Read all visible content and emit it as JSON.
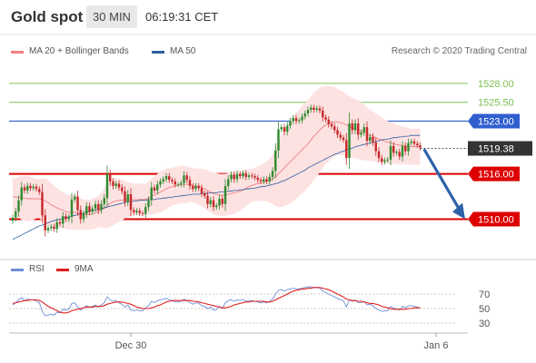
{
  "header": {
    "title": "Gold spot",
    "timeframe": "30 MIN",
    "time": "06:19:31 CET"
  },
  "legend": {
    "ma20_label": "MA 20 + Bollinger Bands",
    "ma20_color": "#f08080",
    "ma50_label": "MA 50",
    "ma50_color": "#2e5d9f",
    "credit": "Research © 2020 Trading Central"
  },
  "indicator_legend": {
    "rsi_label": "RSI",
    "rsi_color": "#6f8fd8",
    "ma9_label": "9MA",
    "ma9_color": "#e02020"
  },
  "colors": {
    "bull": "#2e8b2e",
    "bear": "#c62828",
    "support": "#dd0000",
    "resistance": "#2f5fcf",
    "target": "#7cc050",
    "arrow": "#2e62a8",
    "band": "#fde2e2"
  },
  "chart_data": [
    {
      "type": "candlestick",
      "title": "Gold spot",
      "ylim": [
        1505,
        1531
      ],
      "x_ticks": [
        "Dec 30",
        "Jan 6"
      ],
      "levels": [
        {
          "value": 1528.0,
          "label": "1528.00",
          "kind": "target"
        },
        {
          "value": 1525.5,
          "label": "1525.50",
          "kind": "target"
        },
        {
          "value": 1523.0,
          "label": "1523.00",
          "kind": "resistance"
        },
        {
          "value": 1516.0,
          "label": "1516.00",
          "kind": "support"
        },
        {
          "value": 1510.0,
          "label": "1510.00",
          "kind": "support"
        }
      ],
      "last_price": {
        "value": 1519.38,
        "label": "1519.38"
      },
      "close": [
        1510.2,
        1511.0,
        1512.5,
        1514.2,
        1513.8,
        1514.4,
        1514.1,
        1514.3,
        1514.0,
        1513.6,
        1510.5,
        1508.5,
        1508.8,
        1509.0,
        1508.7,
        1509.6,
        1509.4,
        1510.4,
        1510.0,
        1510.3,
        1512.6,
        1513.0,
        1511.2,
        1510.0,
        1510.7,
        1511.7,
        1511.0,
        1511.4,
        1512.0,
        1511.2,
        1512.0,
        1512.8,
        1516.0,
        1515.0,
        1514.4,
        1514.7,
        1514.2,
        1513.7,
        1512.3,
        1513.3,
        1511.2,
        1510.9,
        1511.1,
        1510.8,
        1510.7,
        1511.6,
        1512.5,
        1514.2,
        1513.8,
        1514.6,
        1515.0,
        1515.3,
        1515.7,
        1515.2,
        1515.0,
        1514.6,
        1514.6,
        1514.8,
        1515.8,
        1515.2,
        1514.4,
        1514.0,
        1514.4,
        1514.1,
        1513.4,
        1513.1,
        1512.0,
        1512.5,
        1511.6,
        1511.8,
        1512.7,
        1512.0,
        1514.4,
        1515.3,
        1515.9,
        1515.3,
        1516.0,
        1515.7,
        1516.1,
        1515.6,
        1515.8,
        1515.7,
        1515.5,
        1515.2,
        1515.0,
        1515.3,
        1515.0,
        1515.6,
        1516.4,
        1519.1,
        1521.9,
        1522.2,
        1521.6,
        1522.4,
        1523.0,
        1523.4,
        1523.0,
        1523.1,
        1523.6,
        1524.0,
        1524.5,
        1524.8,
        1524.5,
        1524.7,
        1524.4,
        1523.5,
        1523.2,
        1522.6,
        1522.3,
        1521.8,
        1521.2,
        1520.8,
        1520.5,
        1518.1,
        1522.7,
        1521.8,
        1522.7,
        1521.2,
        1521.5,
        1522.2,
        1520.4,
        1520.9,
        1520.2,
        1519.0,
        1518.1,
        1517.6,
        1517.8,
        1517.9,
        1519.7,
        1518.8,
        1518.9,
        1518.3,
        1519.7,
        1519.0,
        1520.1,
        1520.3,
        1520.0,
        1519.8,
        1519.5
      ],
      "ma20": [
        1513.0,
        1512.9,
        1512.9,
        1512.8,
        1512.8,
        1512.7,
        1512.7,
        1512.7,
        1512.7,
        1512.7,
        1512.6,
        1512.4,
        1512.2,
        1511.9,
        1511.7,
        1511.5,
        1511.3,
        1511.2,
        1511.0,
        1510.9,
        1510.9,
        1510.9,
        1510.8,
        1510.7,
        1510.6,
        1510.6,
        1510.6,
        1510.7,
        1510.8,
        1511.0,
        1511.2,
        1511.4,
        1511.8,
        1512.1,
        1512.3,
        1512.4,
        1512.5,
        1512.5,
        1512.6,
        1512.6,
        1512.6,
        1512.6,
        1512.6,
        1512.6,
        1512.6,
        1512.6,
        1512.8,
        1513.0,
        1513.2,
        1513.4,
        1513.6,
        1513.8,
        1514.0,
        1514.2,
        1514.3,
        1514.4,
        1514.5,
        1514.6,
        1514.6,
        1514.6,
        1514.6,
        1514.5,
        1514.4,
        1514.3,
        1514.2,
        1514.0,
        1513.8,
        1513.6,
        1513.4,
        1513.3,
        1513.2,
        1513.2,
        1513.2,
        1513.3,
        1513.4,
        1513.5,
        1513.6,
        1513.7,
        1513.9,
        1514.1,
        1514.3,
        1514.5,
        1514.6,
        1514.7,
        1514.8,
        1514.9,
        1515.0,
        1515.1,
        1515.3,
        1515.6,
        1516.0,
        1516.4,
        1516.8,
        1517.2,
        1517.6,
        1518.0,
        1518.4,
        1518.8,
        1519.2,
        1519.6,
        1520.0,
        1520.5,
        1521.0,
        1521.4,
        1521.8,
        1522.2,
        1522.5,
        1522.7,
        1522.8,
        1522.9,
        1522.9,
        1522.8,
        1522.7,
        1522.5,
        1522.3,
        1522.1,
        1522.0,
        1521.9,
        1521.7,
        1521.5,
        1521.3,
        1521.1,
        1521.0,
        1520.8,
        1520.6,
        1520.5,
        1520.3,
        1520.2,
        1520.1,
        1520.0,
        1519.9,
        1519.8,
        1519.8,
        1519.7,
        1519.7,
        1519.6,
        1519.6,
        1519.6,
        1519.6
      ],
      "ma50": [
        1507.3,
        1507.5,
        1507.7,
        1507.9,
        1508.1,
        1508.3,
        1508.5,
        1508.7,
        1508.9,
        1509.1,
        1509.2,
        1509.4,
        1509.5,
        1509.7,
        1509.8,
        1509.9,
        1510.0,
        1510.1,
        1510.2,
        1510.3,
        1510.4,
        1510.5,
        1510.6,
        1510.7,
        1510.8,
        1510.9,
        1511.0,
        1511.1,
        1511.2,
        1511.3,
        1511.4,
        1511.5,
        1511.6,
        1511.7,
        1511.8,
        1511.9,
        1512.0,
        1512.1,
        1512.2,
        1512.3,
        1512.3,
        1512.4,
        1512.4,
        1512.5,
        1512.5,
        1512.5,
        1512.6,
        1512.6,
        1512.6,
        1512.7,
        1512.7,
        1512.8,
        1512.8,
        1512.9,
        1512.9,
        1513.0,
        1513.0,
        1513.1,
        1513.1,
        1513.2,
        1513.2,
        1513.3,
        1513.3,
        1513.3,
        1513.4,
        1513.4,
        1513.4,
        1513.5,
        1513.5,
        1513.5,
        1513.6,
        1513.6,
        1513.6,
        1513.7,
        1513.7,
        1513.8,
        1513.8,
        1513.9,
        1513.9,
        1514.0,
        1514.0,
        1514.1,
        1514.1,
        1514.2,
        1514.3,
        1514.3,
        1514.4,
        1514.5,
        1514.6,
        1514.7,
        1514.8,
        1515.0,
        1515.1,
        1515.3,
        1515.5,
        1515.7,
        1515.9,
        1516.1,
        1516.3,
        1516.5,
        1516.8,
        1517.0,
        1517.2,
        1517.4,
        1517.6,
        1517.8,
        1518.0,
        1518.2,
        1518.4,
        1518.6,
        1518.7,
        1518.9,
        1519.0,
        1519.2,
        1519.3,
        1519.4,
        1519.6,
        1519.7,
        1519.8,
        1519.9,
        1520.0,
        1520.1,
        1520.2,
        1520.3,
        1520.4,
        1520.5,
        1520.6,
        1520.6,
        1520.7,
        1520.8,
        1520.8,
        1520.9,
        1520.9,
        1521.0,
        1521.0,
        1521.1,
        1521.1,
        1521.1,
        1521.1
      ],
      "bb_width": [
        2.4,
        2.5,
        2.7,
        2.9,
        3.0,
        3.0,
        2.9,
        2.8,
        2.6,
        2.6,
        2.8,
        3.0,
        3.0,
        2.9,
        2.8,
        2.6,
        2.5,
        2.4,
        2.3,
        2.3,
        2.3,
        2.3,
        2.2,
        2.1,
        2.0,
        2.0,
        2.0,
        2.0,
        2.1,
        2.1,
        2.3,
        2.6,
        3.0,
        3.1,
        3.1,
        3.0,
        2.9,
        2.7,
        2.5,
        2.3,
        2.2,
        2.1,
        2.1,
        2.1,
        2.1,
        2.1,
        2.2,
        2.4,
        2.5,
        2.6,
        2.7,
        2.7,
        2.7,
        2.6,
        2.5,
        2.5,
        2.5,
        2.5,
        2.5,
        2.4,
        2.3,
        2.3,
        2.3,
        2.4,
        2.5,
        2.6,
        2.7,
        2.7,
        2.8,
        2.8,
        2.8,
        2.8,
        2.8,
        2.8,
        2.8,
        2.8,
        2.7,
        2.6,
        2.5,
        2.4,
        2.3,
        2.2,
        2.2,
        2.3,
        2.4,
        2.5,
        2.6,
        2.9,
        3.3,
        3.9,
        4.4,
        4.8,
        5.1,
        5.3,
        5.5,
        5.6,
        5.7,
        5.7,
        5.8,
        5.8,
        5.8,
        5.8,
        5.8,
        5.7,
        5.6,
        5.4,
        5.2,
        5.0,
        4.8,
        4.6,
        4.4,
        4.3,
        4.2,
        4.1,
        4.0,
        4.0,
        3.9,
        3.9,
        3.8,
        3.7,
        3.5,
        3.4,
        3.3,
        3.2,
        3.1,
        3.0,
        2.9,
        2.8,
        2.8,
        2.7,
        2.6,
        2.6,
        2.5,
        2.5,
        2.4,
        2.4,
        2.4,
        2.4,
        2.4
      ]
    },
    {
      "type": "line",
      "title": "RSI",
      "ylim": [
        20,
        85
      ],
      "y_ticks": [
        70,
        50,
        30
      ],
      "series": [
        {
          "name": "RSI",
          "values": [
            55,
            58,
            62,
            65,
            61,
            63,
            62,
            62,
            60,
            58,
            46,
            40,
            41,
            42,
            41,
            45,
            44,
            49,
            48,
            49,
            57,
            58,
            52,
            48,
            51,
            54,
            52,
            53,
            55,
            52,
            55,
            58,
            66,
            62,
            60,
            61,
            58,
            56,
            52,
            55,
            48,
            47,
            48,
            47,
            47,
            51,
            54,
            60,
            58,
            61,
            62,
            63,
            64,
            62,
            61,
            59,
            59,
            60,
            63,
            61,
            58,
            56,
            58,
            57,
            54,
            53,
            50,
            52,
            48,
            49,
            53,
            50,
            58,
            61,
            62,
            60,
            62,
            61,
            62,
            60,
            61,
            61,
            60,
            59,
            58,
            59,
            58,
            60,
            63,
            70,
            75,
            76,
            74,
            76,
            77,
            78,
            77,
            77,
            78,
            79,
            80,
            80,
            79,
            79,
            78,
            74,
            72,
            70,
            68,
            66,
            64,
            62,
            61,
            52,
            62,
            60,
            62,
            58,
            58,
            60,
            55,
            56,
            54,
            50,
            48,
            46,
            47,
            47,
            53,
            50,
            50,
            48,
            53,
            51,
            54,
            54,
            53,
            52,
            51
          ]
        },
        {
          "name": "9MA",
          "values": [
            57,
            58,
            59,
            60,
            61,
            61,
            62,
            62,
            62,
            61,
            59,
            56,
            53,
            51,
            49,
            47,
            45,
            44,
            44,
            45,
            47,
            48,
            49,
            50,
            51,
            52,
            52,
            52,
            53,
            53,
            53,
            54,
            56,
            57,
            58,
            59,
            59,
            59,
            58,
            57,
            56,
            54,
            52,
            51,
            50,
            50,
            50,
            51,
            52,
            54,
            55,
            57,
            59,
            60,
            61,
            61,
            61,
            61,
            61,
            61,
            61,
            60,
            60,
            59,
            58,
            57,
            56,
            55,
            54,
            53,
            52,
            51,
            51,
            52,
            53,
            55,
            56,
            57,
            58,
            59,
            59,
            60,
            60,
            60,
            60,
            60,
            59,
            59,
            60,
            62,
            64,
            66,
            68,
            70,
            72,
            74,
            75,
            76,
            77,
            77,
            78,
            78,
            79,
            79,
            79,
            78,
            77,
            76,
            74,
            72,
            70,
            68,
            66,
            63,
            62,
            61,
            61,
            60,
            60,
            59,
            58,
            57,
            57,
            56,
            55,
            53,
            52,
            51,
            50,
            49,
            49,
            49,
            49,
            49,
            50,
            50,
            51,
            51,
            51
          ]
        }
      ]
    }
  ]
}
